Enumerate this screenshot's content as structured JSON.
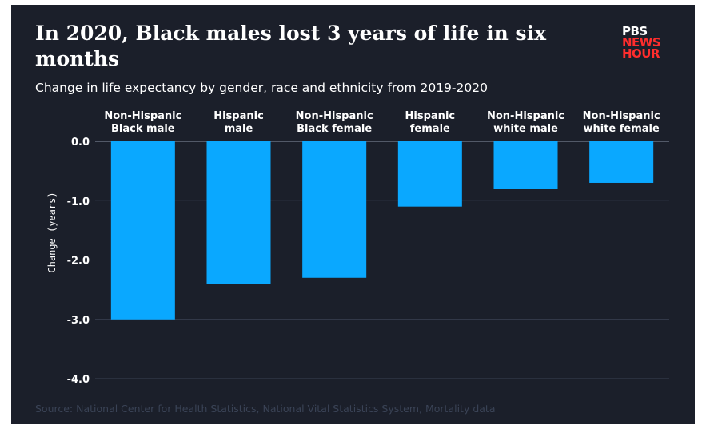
{
  "header": {
    "title": "In 2020, Black males lost 3 years of life in six months",
    "subtitle": "Change in life expectancy by gender, race and ethnicity from 2019-2020",
    "source": "Source: National Center for Health Statistics, National Vital Statistics System, Mortality data"
  },
  "logo": {
    "line1": "PBS",
    "line2": "NEWS",
    "line3": "HOUR"
  },
  "colors": {
    "background": "#1b1f2a",
    "bar": "#0aa8ff",
    "grid": "#3a4152",
    "accent": "#ff2d2d"
  },
  "chart_data": {
    "type": "bar",
    "orientation": "vertical",
    "categories": [
      "Non-Hispanic Black male",
      "Hispanic male",
      "Non-Hispanic Black female",
      "Hispanic female",
      "Non-Hispanic white male",
      "Non-Hispanic white female"
    ],
    "category_lines": [
      [
        "Non-Hispanic",
        "Black male"
      ],
      [
        "Hispanic",
        "male"
      ],
      [
        "Non-Hispanic",
        "Black female"
      ],
      [
        "Hispanic",
        "female"
      ],
      [
        "Non-Hispanic",
        "white male"
      ],
      [
        "Non-Hispanic",
        "white female"
      ]
    ],
    "values": [
      -3.0,
      -2.4,
      -2.3,
      -1.1,
      -0.8,
      -0.7
    ],
    "ylabel": "Change (years)",
    "ylim": [
      -4.0,
      0.0
    ],
    "yticks": [
      0.0,
      -1.0,
      -2.0,
      -3.0,
      -4.0
    ],
    "ytick_labels": [
      "0.0",
      "-1.0",
      "-2.0",
      "-3.0",
      "-4.0"
    ],
    "grid": true,
    "category_labels_position": "top"
  }
}
